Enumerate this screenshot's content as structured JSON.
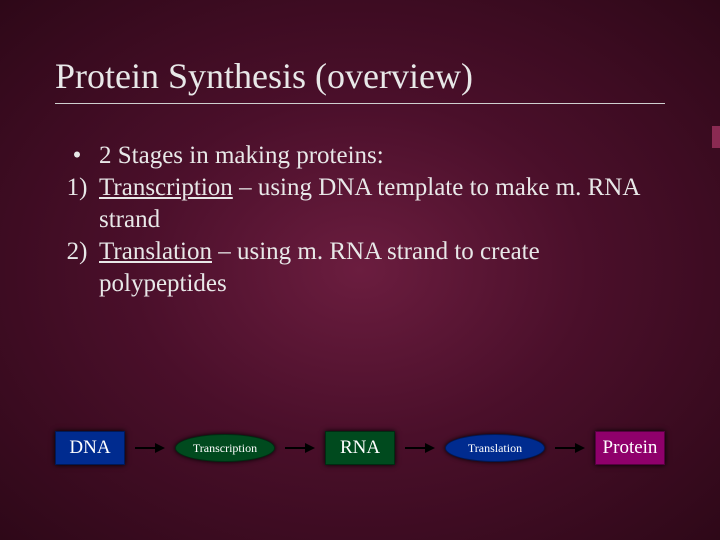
{
  "title": "Protein Synthesis (overview)",
  "bullets": {
    "intro_marker": "•",
    "intro": "2 Stages in making proteins:",
    "item1_marker": "1)",
    "item1_term": "Transcription",
    "item1_rest": " – using DNA template to make m. RNA strand",
    "item2_marker": "2)",
    "item2_term": "Translation",
    "item2_rest": " – using m. RNA strand to create polypeptides"
  },
  "flow": {
    "node1": {
      "label": "DNA",
      "bg": "#002b8f"
    },
    "node2": {
      "label": "Transcription",
      "bg": "#004a1e"
    },
    "node3": {
      "label": "RNA",
      "bg": "#004a1e"
    },
    "node4": {
      "label": "Translation",
      "bg": "#002b8f"
    },
    "node5": {
      "label": "Protein",
      "bg": "#8f006b"
    }
  }
}
